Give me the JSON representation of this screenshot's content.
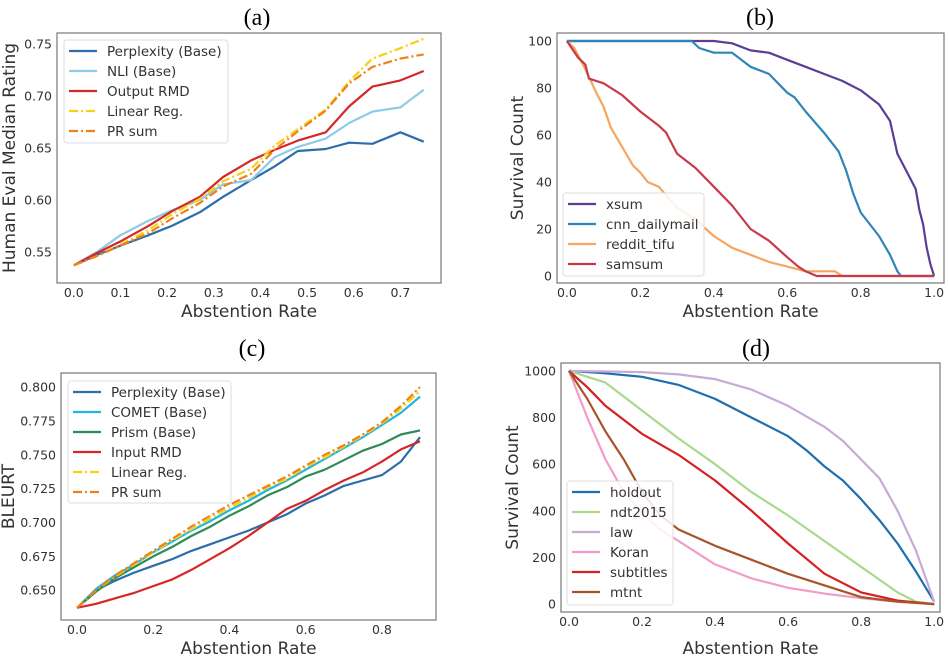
{
  "chart_data": [
    {
      "panel": "(a)",
      "type": "line",
      "xlabel": "Abstention Rate",
      "ylabel": "Human Eval Median Rating",
      "xlim": [
        -0.036,
        0.787
      ],
      "ylim": [
        0.52,
        0.7606
      ],
      "grid": false,
      "legend_position": "upper-left",
      "xticks": [
        "0.0",
        "0.1",
        "0.2",
        "0.3",
        "0.4",
        "0.5",
        "0.6",
        "0.7"
      ],
      "yticks": [
        "0.55",
        "0.60",
        "0.65",
        "0.70",
        "0.75"
      ],
      "x": [
        0,
        0.05,
        0.1,
        0.16,
        0.21,
        0.27,
        0.32,
        0.38,
        0.43,
        0.48,
        0.54,
        0.59,
        0.64,
        0.7,
        0.75
      ],
      "series": [
        {
          "name": "Perplexity (Base)",
          "color": "#2b6ea9",
          "style": "solid",
          "values": [
            0.537,
            0.547,
            0.556,
            0.566,
            0.575,
            0.588,
            0.603,
            0.619,
            0.632,
            0.647,
            0.649,
            0.655,
            0.654,
            0.665,
            0.656
          ]
        },
        {
          "name": "NLI (Base)",
          "color": "#8fcbe8",
          "style": "solid",
          "values": [
            0.537,
            0.55,
            0.566,
            0.58,
            0.59,
            0.6,
            0.615,
            0.619,
            0.641,
            0.651,
            0.659,
            0.674,
            0.685,
            0.689,
            0.706
          ]
        },
        {
          "name": "Output RMD",
          "color": "#d62728",
          "style": "solid",
          "values": [
            0.537,
            0.549,
            0.56,
            0.575,
            0.589,
            0.603,
            0.622,
            0.638,
            0.648,
            0.657,
            0.665,
            0.69,
            0.709,
            0.715,
            0.724
          ]
        },
        {
          "name": "Linear Reg.",
          "color": "#f5d10f",
          "style": "dashdot",
          "values": [
            0.537,
            0.546,
            0.557,
            0.571,
            0.586,
            0.601,
            0.618,
            0.63,
            0.652,
            0.668,
            0.687,
            0.714,
            0.736,
            0.746,
            0.755
          ]
        },
        {
          "name": "PR sum",
          "color": "#f0801a",
          "style": "dashdot",
          "values": [
            0.537,
            0.546,
            0.556,
            0.568,
            0.582,
            0.597,
            0.613,
            0.625,
            0.648,
            0.666,
            0.686,
            0.712,
            0.728,
            0.736,
            0.74
          ]
        }
      ]
    },
    {
      "panel": "(b)",
      "type": "line",
      "xlabel": "Abstention Rate",
      "ylabel": "Survival Count",
      "xlim": [
        -0.027,
        1.027
      ],
      "ylim": [
        -3,
        103.4
      ],
      "grid": false,
      "legend_position": "lower-left",
      "xticks": [
        "0.0",
        "0.2",
        "0.4",
        "0.6",
        "0.8",
        "1.0"
      ],
      "yticks": [
        "0",
        "20",
        "40",
        "60",
        "80",
        "100"
      ],
      "series": [
        {
          "name": "xsum",
          "color": "#5a3e96",
          "style": "solid",
          "x": [
            0,
            0.1,
            0.2,
            0.3,
            0.4,
            0.45,
            0.5,
            0.55,
            0.6,
            0.65,
            0.7,
            0.75,
            0.8,
            0.85,
            0.88,
            0.9,
            0.93,
            0.95,
            0.96,
            0.97,
            0.98,
            0.99,
            1.0
          ],
          "values": [
            100,
            100,
            100,
            100,
            100,
            99,
            96,
            95,
            92,
            89,
            86,
            83,
            79,
            73,
            66,
            52,
            43,
            37,
            28,
            22,
            12,
            5,
            0
          ]
        },
        {
          "name": "cnn_dailymail",
          "color": "#2f85b8",
          "style": "solid",
          "x": [
            0,
            0.34,
            0.36,
            0.4,
            0.45,
            0.5,
            0.55,
            0.6,
            0.62,
            0.65,
            0.7,
            0.74,
            0.76,
            0.78,
            0.8,
            0.85,
            0.88,
            0.9,
            0.91,
            1.0
          ],
          "values": [
            100,
            100,
            97,
            95,
            95,
            89,
            86,
            78,
            76,
            70,
            61,
            53,
            45,
            35,
            27,
            17,
            9,
            2,
            0,
            0
          ]
        },
        {
          "name": "reddit_tifu",
          "color": "#f4a65e",
          "style": "solid",
          "x": [
            0,
            0.02,
            0.05,
            0.08,
            0.1,
            0.12,
            0.15,
            0.18,
            0.2,
            0.22,
            0.25,
            0.3,
            0.35,
            0.4,
            0.45,
            0.5,
            0.55,
            0.6,
            0.65,
            0.73,
            0.75,
            1.0
          ],
          "values": [
            100,
            97,
            88,
            78,
            72,
            63,
            55,
            47,
            44,
            40,
            38,
            29,
            24,
            17,
            12,
            9,
            6,
            4,
            2,
            2,
            0,
            0
          ]
        },
        {
          "name": "samsum",
          "color": "#c83a4b",
          "style": "solid",
          "x": [
            0,
            0.03,
            0.05,
            0.06,
            0.1,
            0.15,
            0.2,
            0.25,
            0.27,
            0.3,
            0.35,
            0.4,
            0.45,
            0.5,
            0.55,
            0.6,
            0.63,
            0.65,
            0.68,
            1.0
          ],
          "values": [
            100,
            93,
            90,
            84,
            82,
            77,
            70,
            64,
            61,
            52,
            46,
            38,
            30,
            20,
            15,
            8,
            4,
            2,
            0,
            0
          ]
        }
      ]
    },
    {
      "panel": "(c)",
      "type": "line",
      "xlabel": "Abstention Rate",
      "ylabel": "BLEURT",
      "xlim": [
        -0.042,
        0.942
      ],
      "ylim": [
        0.628,
        0.8104
      ],
      "grid": false,
      "legend_position": "upper-left",
      "xticks": [
        "0.0",
        "0.2",
        "0.4",
        "0.6",
        "0.8"
      ],
      "yticks": [
        "0.650",
        "0.675",
        "0.700",
        "0.725",
        "0.750",
        "0.775",
        "0.800"
      ],
      "x": [
        0,
        0.05,
        0.1,
        0.15,
        0.2,
        0.25,
        0.3,
        0.35,
        0.4,
        0.45,
        0.5,
        0.55,
        0.6,
        0.65,
        0.7,
        0.75,
        0.8,
        0.85,
        0.9
      ],
      "series": [
        {
          "name": "Perplexity (Base)",
          "color": "#2b6ea9",
          "style": "solid",
          "values": [
            0.637,
            0.65,
            0.657,
            0.663,
            0.668,
            0.673,
            0.679,
            0.684,
            0.689,
            0.694,
            0.7,
            0.706,
            0.714,
            0.72,
            0.727,
            0.731,
            0.735,
            0.745,
            0.763
          ]
        },
        {
          "name": "COMET (Base)",
          "color": "#1fb5e6",
          "style": "solid",
          "values": [
            0.637,
            0.651,
            0.661,
            0.669,
            0.678,
            0.686,
            0.694,
            0.701,
            0.709,
            0.716,
            0.724,
            0.731,
            0.739,
            0.747,
            0.755,
            0.763,
            0.772,
            0.781,
            0.793
          ]
        },
        {
          "name": "Prism (Base)",
          "color": "#2e8b57",
          "style": "solid",
          "values": [
            0.637,
            0.649,
            0.659,
            0.667,
            0.675,
            0.682,
            0.69,
            0.697,
            0.705,
            0.712,
            0.72,
            0.726,
            0.734,
            0.739,
            0.746,
            0.753,
            0.758,
            0.765,
            0.768
          ]
        },
        {
          "name": "Input RMD",
          "color": "#d62728",
          "style": "solid",
          "values": [
            0.637,
            0.64,
            0.644,
            0.648,
            0.653,
            0.658,
            0.665,
            0.673,
            0.681,
            0.69,
            0.7,
            0.71,
            0.716,
            0.724,
            0.731,
            0.737,
            0.745,
            0.754,
            0.76
          ]
        },
        {
          "name": "Linear Reg.",
          "color": "#f5d10f",
          "style": "dashdot",
          "values": [
            0.637,
            0.65,
            0.66,
            0.669,
            0.678,
            0.687,
            0.695,
            0.703,
            0.711,
            0.718,
            0.726,
            0.732,
            0.741,
            0.748,
            0.756,
            0.764,
            0.773,
            0.784,
            0.797
          ]
        },
        {
          "name": "PR sum",
          "color": "#f0801a",
          "style": "dashdot",
          "values": [
            0.637,
            0.65,
            0.661,
            0.67,
            0.679,
            0.688,
            0.697,
            0.705,
            0.713,
            0.72,
            0.727,
            0.734,
            0.742,
            0.75,
            0.757,
            0.765,
            0.774,
            0.786,
            0.8
          ]
        }
      ]
    },
    {
      "panel": "(d)",
      "type": "line",
      "xlabel": "Abstention Rate",
      "ylabel": "Survival Count",
      "xlim": [
        -0.022,
        1.016
      ],
      "ylim": [
        -34,
        1034
      ],
      "grid": false,
      "legend_position": "lower-left",
      "xticks": [
        "0.0",
        "0.2",
        "0.4",
        "0.6",
        "0.8",
        "1.0"
      ],
      "yticks": [
        "0",
        "200",
        "400",
        "600",
        "800",
        "1000"
      ],
      "series": [
        {
          "name": "holdout",
          "color": "#1f6fb0",
          "style": "solid",
          "x": [
            0,
            0.1,
            0.2,
            0.3,
            0.4,
            0.5,
            0.6,
            0.65,
            0.7,
            0.75,
            0.8,
            0.85,
            0.9,
            0.95,
            1.0
          ],
          "values": [
            1000,
            990,
            975,
            940,
            880,
            800,
            720,
            660,
            590,
            530,
            450,
            360,
            260,
            140,
            10
          ]
        },
        {
          "name": "ndt2015",
          "color": "#a8d98c",
          "style": "solid",
          "x": [
            0,
            0.1,
            0.2,
            0.3,
            0.4,
            0.5,
            0.6,
            0.7,
            0.8,
            0.9,
            0.95,
            1.0
          ],
          "values": [
            1000,
            950,
            830,
            710,
            600,
            480,
            380,
            270,
            160,
            50,
            10,
            0
          ]
        },
        {
          "name": "law",
          "color": "#c8aad6",
          "style": "solid",
          "x": [
            0,
            0.2,
            0.3,
            0.4,
            0.5,
            0.6,
            0.7,
            0.75,
            0.8,
            0.85,
            0.9,
            0.95,
            1.0
          ],
          "values": [
            1000,
            995,
            985,
            965,
            920,
            850,
            760,
            700,
            620,
            540,
            400,
            230,
            10
          ]
        },
        {
          "name": "Koran",
          "color": "#f29cc7",
          "style": "solid",
          "x": [
            0,
            0.05,
            0.1,
            0.15,
            0.2,
            0.25,
            0.3,
            0.4,
            0.5,
            0.6,
            0.7,
            0.8,
            0.9,
            1.0
          ],
          "values": [
            1000,
            800,
            620,
            480,
            390,
            320,
            270,
            170,
            110,
            70,
            45,
            25,
            10,
            0
          ]
        },
        {
          "name": "subtitles",
          "color": "#d62020",
          "style": "solid",
          "x": [
            0,
            0.05,
            0.1,
            0.15,
            0.2,
            0.3,
            0.4,
            0.5,
            0.6,
            0.7,
            0.8,
            0.9,
            1.0
          ],
          "values": [
            1000,
            930,
            850,
            790,
            730,
            640,
            530,
            400,
            260,
            130,
            50,
            15,
            0
          ]
        },
        {
          "name": "mtnt",
          "color": "#a8542b",
          "style": "solid",
          "x": [
            0,
            0.05,
            0.1,
            0.15,
            0.2,
            0.25,
            0.3,
            0.4,
            0.5,
            0.6,
            0.7,
            0.8,
            0.9,
            1.0
          ],
          "values": [
            1000,
            880,
            740,
            620,
            480,
            380,
            320,
            250,
            190,
            130,
            80,
            30,
            10,
            0
          ]
        }
      ]
    }
  ]
}
